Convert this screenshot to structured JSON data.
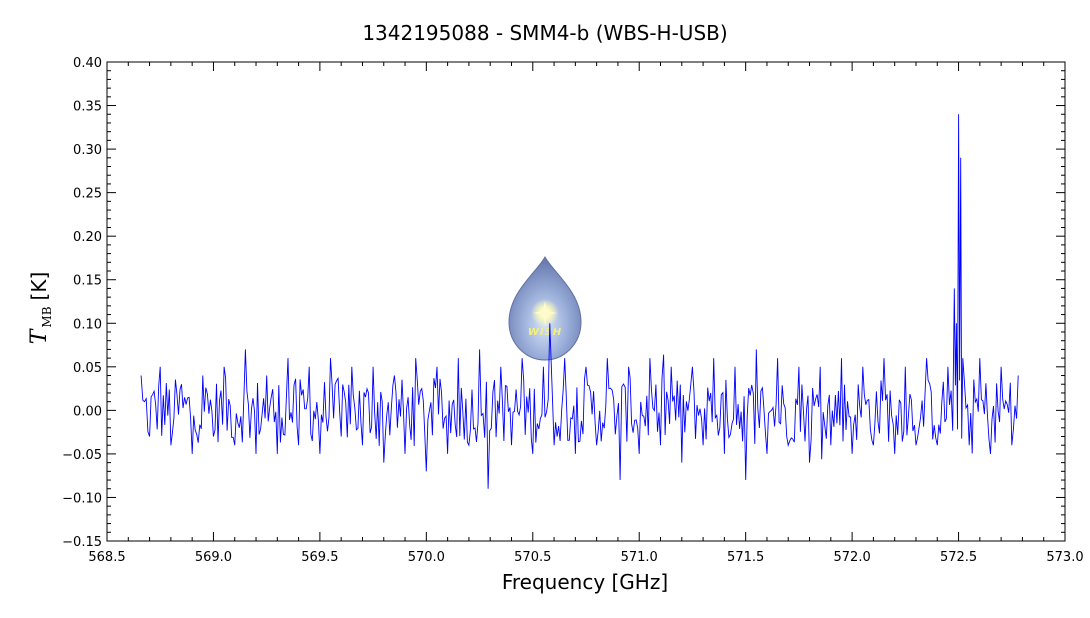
{
  "chart_data": {
    "type": "line",
    "title": "1342195088 - SMM4-b (WBS-H-USB)",
    "xlabel": "Frequency [GHz]",
    "ylabel": {
      "symbol": "T",
      "subscript": "MB",
      "unit": "[K]"
    },
    "xlim": [
      568.5,
      573.0
    ],
    "ylim": [
      -0.15,
      0.4
    ],
    "xticks": [
      "568.5",
      "569.0",
      "569.5",
      "570.0",
      "570.5",
      "571.0",
      "571.5",
      "572.0",
      "572.5",
      "573.0"
    ],
    "yticks": [
      "−0.15",
      "−0.10",
      "−0.05",
      "0.00",
      "0.05",
      "0.10",
      "0.15",
      "0.20",
      "0.25",
      "0.30",
      "0.35",
      "0.40"
    ],
    "line_color": "#0000ff",
    "grid": false,
    "series": [
      {
        "x": [
          568.66,
          568.7,
          568.75,
          568.8,
          568.85,
          568.9,
          568.95,
          569.0,
          569.05,
          569.1,
          569.15,
          569.2,
          569.25,
          569.3,
          569.35,
          569.4,
          569.45,
          569.5,
          569.55,
          569.6,
          569.65,
          569.7,
          569.75,
          569.8,
          569.85,
          569.9,
          569.95,
          570.0,
          570.05,
          570.1,
          570.15,
          570.2,
          570.25,
          570.29,
          570.35,
          570.4,
          570.45,
          570.5,
          570.55,
          570.58,
          570.6,
          570.65,
          570.7,
          570.75,
          570.8,
          570.85,
          570.91,
          570.95,
          571.0,
          571.05,
          571.1,
          571.15,
          571.2,
          571.25,
          571.3,
          571.35,
          571.4,
          571.45,
          571.5,
          571.55,
          571.6,
          571.65,
          571.7,
          571.75,
          571.8,
          571.85,
          571.9,
          571.95,
          572.0,
          572.05,
          572.1,
          572.15,
          572.2,
          572.25,
          572.3,
          572.35,
          572.4,
          572.45,
          572.48,
          572.49,
          572.5,
          572.51,
          572.52,
          572.55,
          572.6,
          572.65,
          572.7,
          572.75,
          572.78
        ],
        "y": [
          0.04,
          -0.03,
          0.05,
          -0.04,
          0.03,
          -0.05,
          0.04,
          -0.03,
          0.05,
          -0.04,
          0.07,
          -0.05,
          0.04,
          -0.05,
          0.06,
          -0.04,
          0.05,
          -0.05,
          0.06,
          -0.03,
          0.05,
          -0.04,
          0.05,
          -0.06,
          0.04,
          -0.05,
          0.06,
          -0.07,
          0.05,
          -0.05,
          0.06,
          -0.04,
          0.07,
          -0.09,
          0.05,
          -0.04,
          0.06,
          -0.05,
          0.05,
          0.1,
          -0.04,
          0.06,
          -0.05,
          0.05,
          -0.04,
          0.06,
          -0.08,
          0.05,
          -0.05,
          0.06,
          -0.04,
          0.05,
          -0.06,
          0.05,
          -0.04,
          0.06,
          -0.05,
          0.05,
          -0.08,
          0.07,
          -0.05,
          0.06,
          -0.04,
          0.05,
          -0.06,
          0.05,
          -0.04,
          0.06,
          -0.05,
          0.05,
          -0.04,
          0.06,
          -0.05,
          0.05,
          -0.04,
          0.06,
          -0.04,
          0.05,
          0.14,
          0.1,
          0.34,
          0.29,
          0.06,
          -0.04,
          0.06,
          -0.05,
          0.05,
          -0.04,
          0.04
        ]
      }
    ]
  },
  "logo": {
    "text": "WISH"
  }
}
